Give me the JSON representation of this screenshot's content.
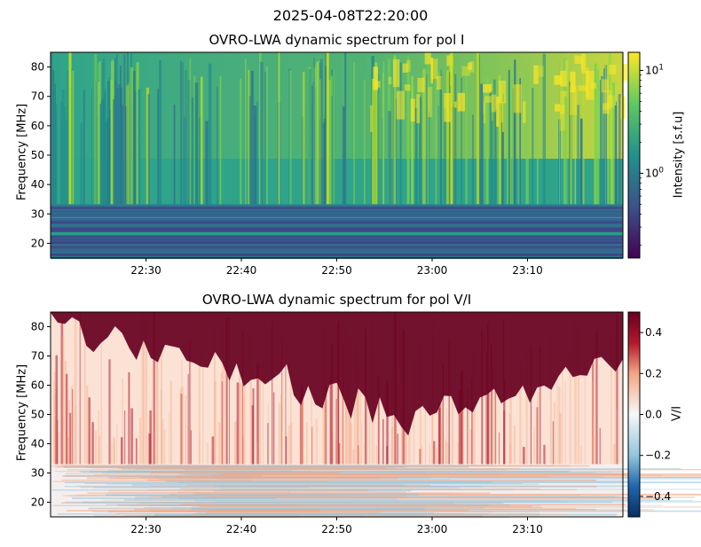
{
  "figure": {
    "suptitle": "2025-04-08T22:20:00"
  },
  "chart_data": [
    {
      "type": "heatmap",
      "title": "OVRO-LWA dynamic spectrum for pol I",
      "xlabel": "",
      "ylabel": "Frequency [MHz]",
      "x_axis": {
        "type": "time",
        "ticks": [
          "22:30",
          "22:40",
          "22:50",
          "23:00",
          "23:10"
        ],
        "range": [
          "22:20",
          "23:20"
        ]
      },
      "y_axis": {
        "ticks": [
          20,
          30,
          40,
          50,
          60,
          70,
          80
        ],
        "range": [
          15,
          85
        ]
      },
      "colorbar": {
        "label": "Intensity [s.f.u]",
        "scale": "log",
        "colormap": "viridis",
        "tick_labels": [
          "10^0",
          "10^1"
        ],
        "range": [
          0.15,
          15
        ]
      },
      "structure": {
        "band_gap_mhz": 33,
        "low_band_description": "horizontal striped bands below 33 MHz",
        "strong_vertical_bursts_at": [
          "22:22",
          "22:49",
          "23:02"
        ],
        "enhanced_region": "upper-right, 60-85 MHz after 22:55"
      }
    },
    {
      "type": "heatmap",
      "title": "OVRO-LWA dynamic spectrum for pol V/I",
      "xlabel": "",
      "ylabel": "Frequency [MHz]",
      "x_axis": {
        "type": "time",
        "ticks": [
          "22:30",
          "22:40",
          "22:50",
          "23:00",
          "23:10"
        ],
        "range": [
          "22:20",
          "23:20"
        ]
      },
      "y_axis": {
        "ticks": [
          20,
          30,
          40,
          50,
          60,
          70,
          80
        ],
        "range": [
          15,
          85
        ]
      },
      "colorbar": {
        "label": "V/I",
        "scale": "linear",
        "colormap": "RdBu_r",
        "ticks": [
          0.4,
          0.2,
          0.0,
          -0.2,
          -0.4
        ],
        "tick_labels": [
          "0.4",
          "0.2",
          "0.0",
          "−0.2",
          "−0.4"
        ],
        "range": [
          -0.5,
          0.5
        ]
      },
      "structure": {
        "band_gap_mhz": 33,
        "saturated_region": "upper-right, dark red above ~50-65 MHz after 22:45"
      }
    }
  ]
}
